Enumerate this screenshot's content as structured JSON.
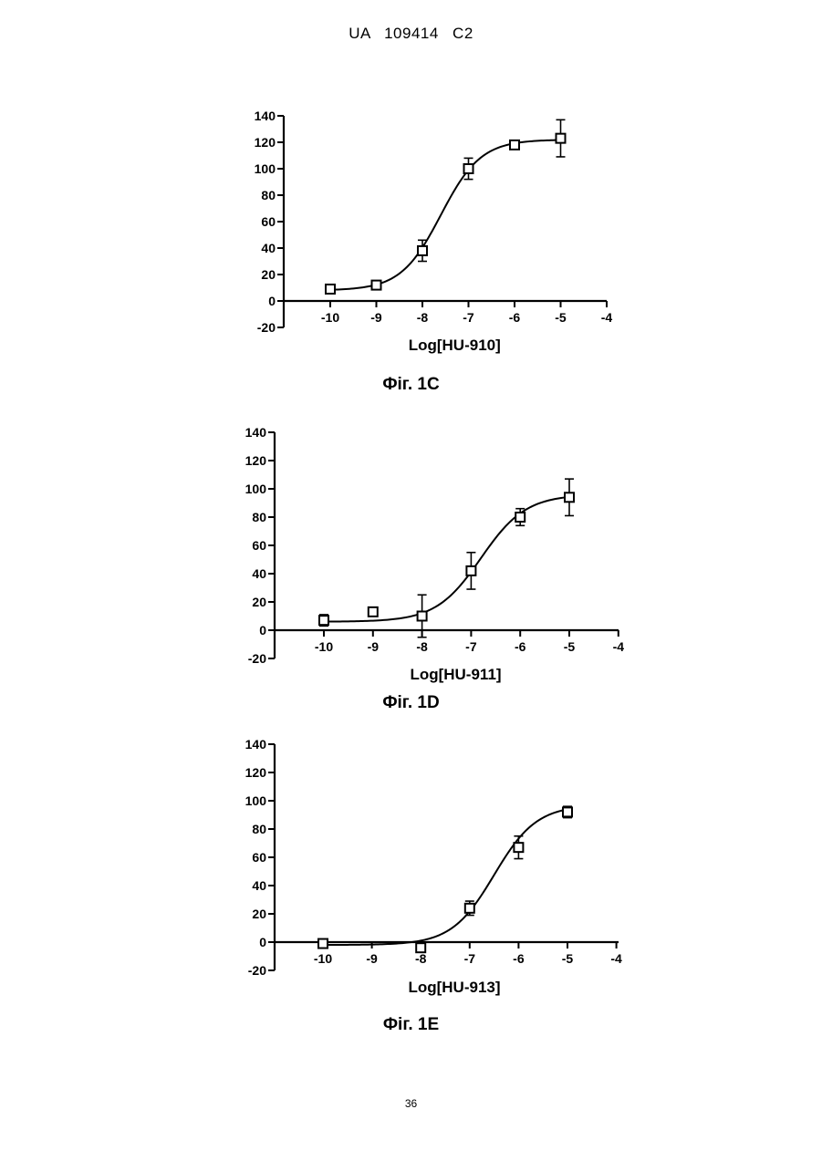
{
  "header": {
    "text": "UA   109414   C2"
  },
  "page_number": "36",
  "chart_data": [
    {
      "type": "scatter",
      "caption": "Фіг. 1С",
      "xlabel": "Log[HU-910]",
      "x_ticks": [
        -10,
        -9,
        -8,
        -7,
        -6,
        -5,
        -4
      ],
      "y_ticks": [
        -20,
        0,
        20,
        40,
        60,
        80,
        100,
        120,
        140
      ],
      "xlim": [
        -11,
        -4
      ],
      "ylim": [
        -20,
        140
      ],
      "grid": false,
      "points": [
        {
          "x": -10,
          "y": 9,
          "err": 0
        },
        {
          "x": -9,
          "y": 12,
          "err": 0
        },
        {
          "x": -8,
          "y": 38,
          "err": 8
        },
        {
          "x": -7,
          "y": 100,
          "err": 8
        },
        {
          "x": -6,
          "y": 118,
          "err": 2
        },
        {
          "x": -5,
          "y": 123,
          "err": 14
        }
      ],
      "fit": {
        "bottom": 8,
        "top": 122,
        "logEC50": -7.6,
        "hill": 1.0,
        "x_from": -10,
        "x_to": -5
      }
    },
    {
      "type": "scatter",
      "caption": "Фіг. 1D",
      "xlabel": "Log[HU-911]",
      "x_ticks": [
        -10,
        -9,
        -8,
        -7,
        -6,
        -5,
        -4
      ],
      "y_ticks": [
        -20,
        0,
        20,
        40,
        60,
        80,
        100,
        120,
        140
      ],
      "xlim": [
        -11,
        -4
      ],
      "ylim": [
        -20,
        140
      ],
      "grid": false,
      "points": [
        {
          "x": -10,
          "y": 7,
          "err": 4
        },
        {
          "x": -9,
          "y": 13,
          "err": 2
        },
        {
          "x": -8,
          "y": 10,
          "err": 15
        },
        {
          "x": -7,
          "y": 42,
          "err": 13
        },
        {
          "x": -6,
          "y": 80,
          "err": 6
        },
        {
          "x": -5,
          "y": 94,
          "err": 13
        }
      ],
      "fit": {
        "bottom": 6,
        "top": 96,
        "logEC50": -6.8,
        "hill": 0.95,
        "x_from": -10,
        "x_to": -5
      }
    },
    {
      "type": "scatter",
      "caption": "Фіг. 1Е",
      "xlabel": "Log[HU-913]",
      "x_ticks": [
        -10,
        -9,
        -8,
        -7,
        -6,
        -5,
        -4
      ],
      "y_ticks": [
        -20,
        0,
        20,
        40,
        60,
        80,
        100,
        120,
        140
      ],
      "xlim": [
        -11,
        -4
      ],
      "ylim": [
        -20,
        140
      ],
      "grid": false,
      "points": [
        {
          "x": -10,
          "y": -1,
          "err": 0
        },
        {
          "x": -8,
          "y": -4,
          "err": 0
        },
        {
          "x": -7,
          "y": 24,
          "err": 5
        },
        {
          "x": -6,
          "y": 67,
          "err": 8
        },
        {
          "x": -5,
          "y": 92,
          "err": 4
        }
      ],
      "fit": {
        "bottom": -2,
        "top": 97,
        "logEC50": -6.5,
        "hill": 1.0,
        "x_from": -10,
        "x_to": -5
      }
    }
  ]
}
